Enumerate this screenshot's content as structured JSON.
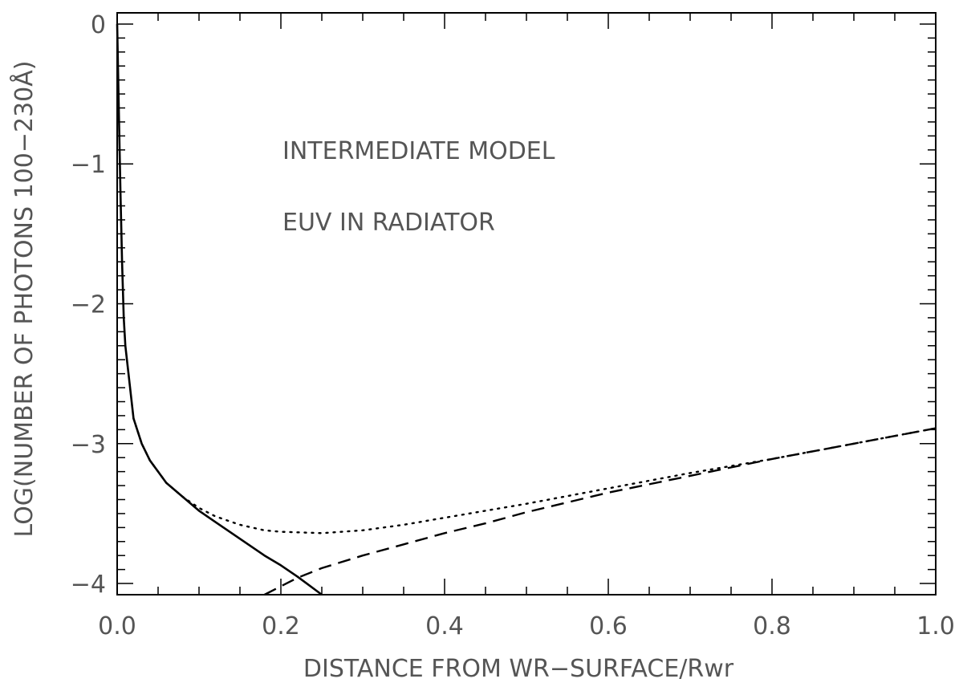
{
  "chart_data": {
    "type": "line",
    "title": "",
    "xlabel": "DISTANCE FROM WR−SURFACE/Rwr",
    "ylabel": "LOG(NUMBER OF PHOTONS 100−230Å)",
    "xlim": [
      0.0,
      1.0
    ],
    "ylim": [
      -4.08,
      0.08
    ],
    "x_ticks": [
      0.0,
      0.2,
      0.4,
      0.6,
      0.8,
      1.0
    ],
    "x_tick_labels": [
      "0.0",
      "0.2",
      "0.4",
      "0.6",
      "0.8",
      "1.0"
    ],
    "y_ticks": [
      0,
      -1,
      -2,
      -3,
      -4
    ],
    "y_tick_labels": [
      "0",
      "−1",
      "−2",
      "−3",
      "−4"
    ],
    "grid": false,
    "annotations": [
      "INTERMEDIATE MODEL",
      "EUV IN RADIATOR"
    ],
    "series": [
      {
        "style": "solid",
        "x": [
          0.0,
          0.002,
          0.004,
          0.006,
          0.008,
          0.01,
          0.02,
          0.03,
          0.04,
          0.05,
          0.06,
          0.08,
          0.1,
          0.12,
          0.15,
          0.18,
          0.2,
          0.22,
          0.25
        ],
        "y": [
          0.0,
          -0.6,
          -1.2,
          -1.7,
          -2.1,
          -2.3,
          -2.82,
          -3.0,
          -3.12,
          -3.2,
          -3.28,
          -3.38,
          -3.48,
          -3.56,
          -3.68,
          -3.8,
          -3.87,
          -3.95,
          -4.08
        ]
      },
      {
        "style": "dotted",
        "x": [
          0.02,
          0.03,
          0.04,
          0.05,
          0.06,
          0.08,
          0.1,
          0.12,
          0.15,
          0.18,
          0.2,
          0.25,
          0.3,
          0.35,
          0.4,
          0.5,
          0.6,
          0.7,
          0.8,
          0.9,
          1.0
        ],
        "y": [
          -2.82,
          -3.0,
          -3.12,
          -3.2,
          -3.28,
          -3.38,
          -3.46,
          -3.52,
          -3.58,
          -3.62,
          -3.63,
          -3.64,
          -3.62,
          -3.58,
          -3.53,
          -3.43,
          -3.32,
          -3.21,
          -3.11,
          -3.0,
          -2.89
        ]
      },
      {
        "style": "dashed",
        "x": [
          0.18,
          0.2,
          0.22,
          0.25,
          0.3,
          0.35,
          0.4,
          0.45,
          0.5,
          0.6,
          0.7,
          0.8,
          0.9,
          1.0
        ],
        "y": [
          -4.08,
          -4.02,
          -3.96,
          -3.89,
          -3.8,
          -3.72,
          -3.64,
          -3.57,
          -3.49,
          -3.35,
          -3.23,
          -3.11,
          -3.0,
          -2.89
        ]
      }
    ]
  }
}
